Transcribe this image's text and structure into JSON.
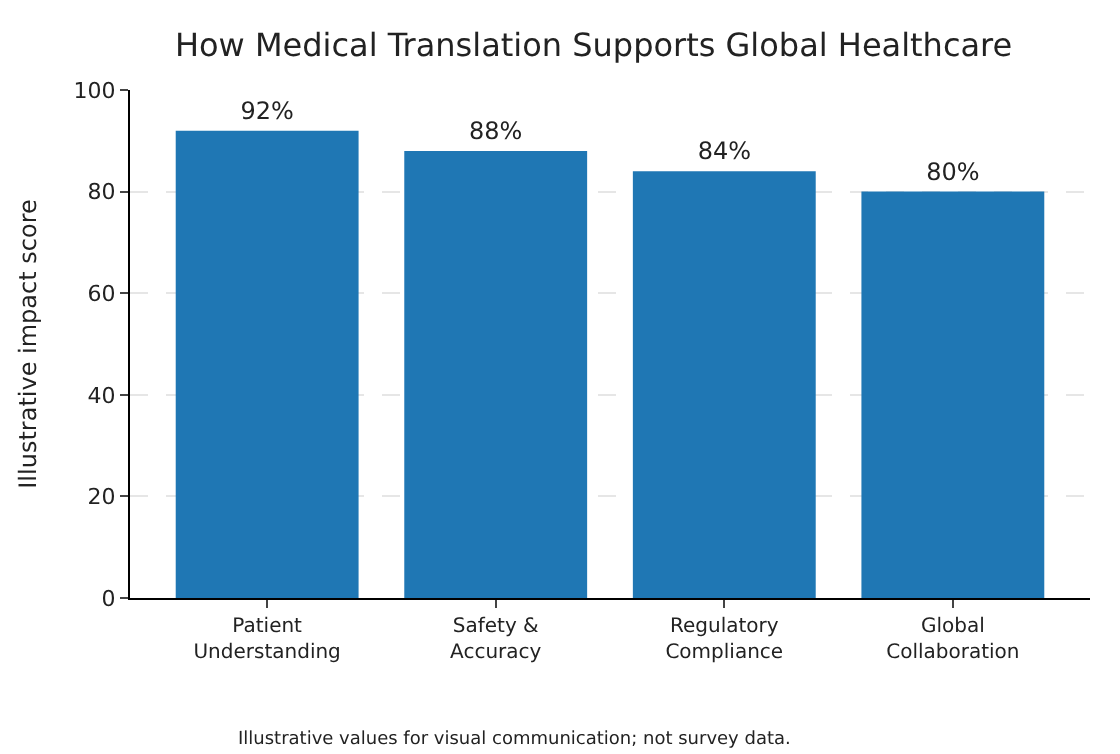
{
  "chart_data": {
    "type": "bar",
    "title": "How Medical Translation Supports Global Healthcare",
    "ylabel": "Illustrative impact score",
    "categories": [
      "Patient Understanding",
      "Safety & Accuracy",
      "Regulatory Compliance",
      "Global Collaboration"
    ],
    "values": [
      92,
      88,
      84,
      80
    ],
    "color": "#1f77b4",
    "value_labels": [
      "92%",
      "88%",
      "84%",
      "80%"
    ],
    "ylim": [
      0,
      100
    ],
    "yticks": [
      0,
      20,
      40,
      60,
      80,
      100
    ],
    "grid": "y",
    "annotations": [
      "Illustrative values for visual communication; not survey data."
    ]
  }
}
